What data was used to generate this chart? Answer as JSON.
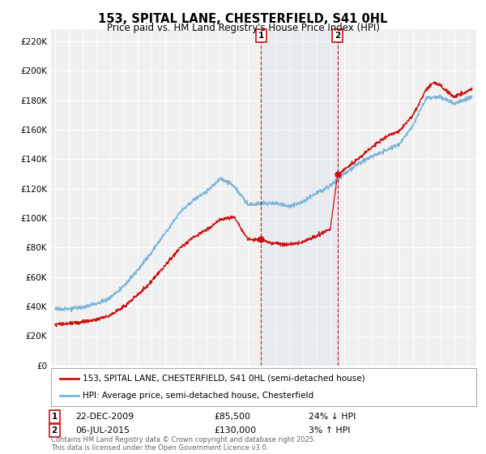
{
  "title_line1": "153, SPITAL LANE, CHESTERFIELD, S41 0HL",
  "title_line2": "Price paid vs. HM Land Registry's House Price Index (HPI)",
  "yticks": [
    0,
    20000,
    40000,
    60000,
    80000,
    100000,
    120000,
    140000,
    160000,
    180000,
    200000,
    220000
  ],
  "ytick_labels": [
    "£0",
    "£20K",
    "£40K",
    "£60K",
    "£80K",
    "£100K",
    "£120K",
    "£140K",
    "£160K",
    "£180K",
    "£200K",
    "£220K"
  ],
  "ylim_max": 228000,
  "hpi_color": "#7ab4d8",
  "price_color": "#cc1111",
  "vline_color": "#cc1111",
  "transaction1_date": 2009.97,
  "transaction1_price": 85500,
  "transaction2_date": 2015.52,
  "transaction2_price": 130000,
  "legend_line1": "153, SPITAL LANE, CHESTERFIELD, S41 0HL (semi-detached house)",
  "legend_line2": "HPI: Average price, semi-detached house, Chesterfield",
  "annotation1_date": "22-DEC-2009",
  "annotation1_price": "£85,500",
  "annotation1_hpi": "24% ↓ HPI",
  "annotation2_date": "06-JUL-2015",
  "annotation2_price": "£130,000",
  "annotation2_hpi": "3% ↑ HPI",
  "footer": "Contains HM Land Registry data © Crown copyright and database right 2025.\nThis data is licensed under the Open Government Licence v3.0.",
  "background_color": "#ffffff",
  "plot_bg_color": "#f0f0f0"
}
